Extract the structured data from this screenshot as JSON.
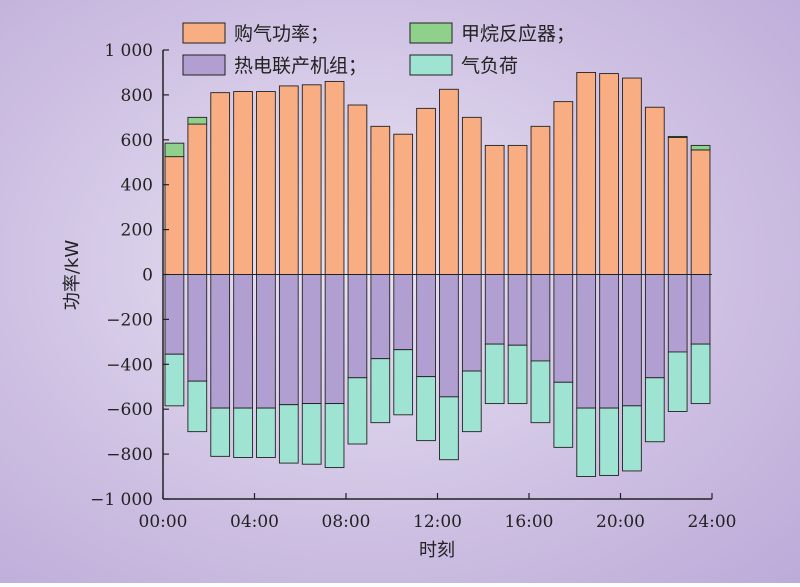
{
  "chart_data": {
    "type": "bar",
    "stacked": true,
    "xlabel": "时刻",
    "ylabel": "功率/kW",
    "ylim": [
      -1000,
      1000
    ],
    "yticks": [
      -1000,
      -800,
      -600,
      -400,
      -200,
      0,
      200,
      400,
      600,
      800,
      1000
    ],
    "ytick_labels": [
      "−1 000",
      "−800",
      "−600",
      "−400",
      "−200",
      "0",
      "200",
      "400",
      "600",
      "800",
      "1 000"
    ],
    "xticks": [
      "00:00",
      "04:00",
      "08:00",
      "12:00",
      "16:00",
      "20:00",
      "24:00"
    ],
    "legend_position": "top",
    "categories": [
      1,
      2,
      3,
      4,
      5,
      6,
      7,
      8,
      9,
      10,
      11,
      12,
      13,
      14,
      15,
      16,
      17,
      18,
      19,
      20,
      21,
      22,
      23,
      24
    ],
    "series": [
      {
        "name": "购气功率；",
        "color": "#f8ae82",
        "values": [
          525,
          670,
          810,
          815,
          815,
          840,
          845,
          860,
          755,
          660,
          625,
          740,
          825,
          700,
          575,
          575,
          660,
          770,
          900,
          895,
          875,
          745,
          610,
          555
        ]
      },
      {
        "name": "甲烷反应器；",
        "color": "#8fd18a",
        "values": [
          60,
          30,
          0,
          0,
          0,
          0,
          0,
          0,
          0,
          0,
          0,
          0,
          0,
          0,
          0,
          0,
          0,
          0,
          0,
          0,
          0,
          0,
          5,
          20
        ]
      },
      {
        "name": "热电联产机组；",
        "color": "#b29fd2",
        "values": [
          -355,
          -475,
          -595,
          -595,
          -595,
          -580,
          -575,
          -575,
          -460,
          -375,
          -335,
          -455,
          -545,
          -430,
          -310,
          -315,
          -385,
          -480,
          -595,
          -595,
          -585,
          -460,
          -345,
          -310
        ]
      },
      {
        "name": "气负荷",
        "color": "#9fe3d3",
        "values": [
          -230,
          -225,
          -215,
          -220,
          -220,
          -260,
          -270,
          -285,
          -295,
          -285,
          -290,
          -285,
          -280,
          -270,
          -265,
          -260,
          -275,
          -290,
          -305,
          -300,
          -290,
          -285,
          -265,
          -265
        ]
      }
    ]
  }
}
